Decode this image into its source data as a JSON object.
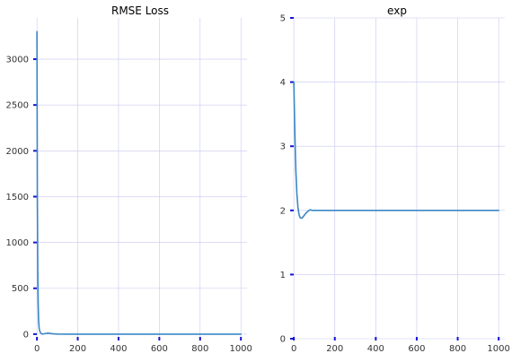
{
  "chart_data": [
    {
      "type": "line",
      "title": "RMSE Loss",
      "xlabel": "",
      "ylabel": "",
      "xlim": [
        -5,
        1030
      ],
      "ylim": [
        -50,
        3450
      ],
      "xticks": [
        0,
        200,
        400,
        600,
        800,
        1000
      ],
      "yticks": [
        0,
        500,
        1000,
        1500,
        2000,
        2500,
        3000
      ],
      "grid": true,
      "legend": "none",
      "line_color": "#3a87c6",
      "series": [
        {
          "x": [
            0,
            2,
            4,
            6,
            8,
            10,
            12,
            15,
            20,
            25,
            30,
            40,
            50,
            60,
            70,
            80,
            100,
            150,
            200,
            300,
            400,
            500,
            600,
            700,
            800,
            900,
            1000
          ],
          "values": [
            3300,
            1500,
            700,
            330,
            160,
            90,
            50,
            25,
            8,
            2,
            1,
            6,
            10,
            9,
            6,
            3,
            1,
            0,
            0,
            0,
            0,
            0,
            0,
            0,
            0,
            0,
            0
          ]
        }
      ]
    },
    {
      "type": "line",
      "title": "exp",
      "xlabel": "",
      "ylabel": "",
      "xlim": [
        -5,
        1030
      ],
      "ylim": [
        0,
        5
      ],
      "xticks": [
        0,
        200,
        400,
        600,
        800,
        1000
      ],
      "yticks": [
        0,
        1,
        2,
        3,
        4,
        5
      ],
      "grid": true,
      "legend": "none",
      "line_color": "#3a87c6",
      "series": [
        {
          "x": [
            0,
            3,
            6,
            10,
            15,
            20,
            25,
            30,
            35,
            40,
            45,
            50,
            60,
            70,
            80,
            90,
            100,
            150,
            200,
            300,
            400,
            500,
            600,
            700,
            800,
            900,
            1000
          ],
          "values": [
            4.0,
            3.5,
            3.05,
            2.6,
            2.25,
            2.05,
            1.94,
            1.89,
            1.88,
            1.88,
            1.9,
            1.92,
            1.96,
            1.99,
            2.01,
            2.0,
            2.0,
            2.0,
            2.0,
            2.0,
            2.0,
            2.0,
            2.0,
            2.0,
            2.0,
            2.0,
            2.0
          ]
        }
      ]
    }
  ]
}
